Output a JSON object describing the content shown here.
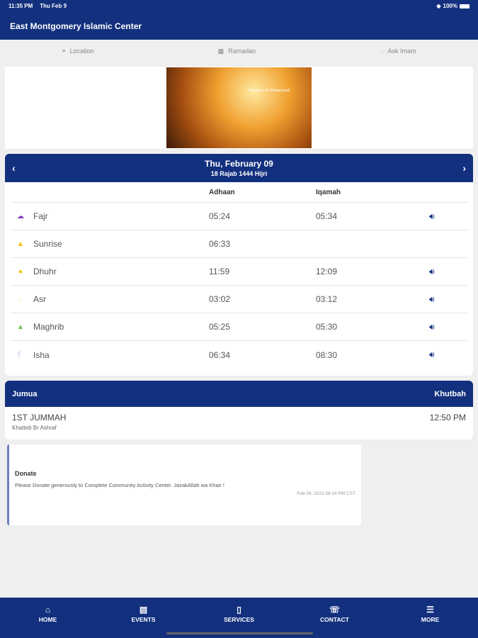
{
  "status": {
    "time": "11:35 PM",
    "date": "Thu Feb 9",
    "battery": "100%"
  },
  "app_title": "East Montgomery Islamic Center",
  "quick_links": [
    {
      "label": "Location",
      "icon": "pin-icon"
    },
    {
      "label": "Ramadan",
      "icon": "calendar-icon"
    },
    {
      "label": "Ask Imam",
      "icon": "chat-icon"
    }
  ],
  "banner": {
    "quote_title": "Translator (O Muhammad)"
  },
  "prayer": {
    "date": "Thu, February 09",
    "hijri": "18 Rajab 1444 Hijri",
    "col_adhaan": "Adhaan",
    "col_iqamah": "Iqamah",
    "rows": [
      {
        "name": "Fajr",
        "adhaan": "05:24",
        "iqamah": "05:34",
        "color": "#7b3fc4",
        "sound": true
      },
      {
        "name": "Sunrise",
        "adhaan": "06:33",
        "iqamah": "",
        "color": "#f5c000",
        "sound": false
      },
      {
        "name": "Dhuhr",
        "adhaan": "11:59",
        "iqamah": "12:09",
        "color": "#f5c000",
        "sound": true
      },
      {
        "name": "Asr",
        "adhaan": "03:02",
        "iqamah": "03:12",
        "color": "#f7eaa0",
        "sound": true
      },
      {
        "name": "Maghrib",
        "adhaan": "05:25",
        "iqamah": "05:30",
        "color": "#6cc24a",
        "sound": true
      },
      {
        "name": "Isha",
        "adhaan": "06:34",
        "iqamah": "08:30",
        "color": "#8fa6e0",
        "sound": true
      }
    ]
  },
  "jumua": {
    "title": "Jumua",
    "khutbah": "Khutbah",
    "name": "1ST JUMMAH",
    "speaker": "Khatteb Br Ashraf",
    "time": "12:50 PM"
  },
  "announcement": {
    "title": "Donate",
    "body": "Please Donate generously to Complete Community Activity Center. JazakAllah wa Khair !",
    "timestamp": "Feb 09, 2023 08:14 PM CST"
  },
  "nav": [
    {
      "label": "HOME",
      "icon": "⌂"
    },
    {
      "label": "EVENTS",
      "icon": "▤"
    },
    {
      "label": "SERVICES",
      "icon": "▯"
    },
    {
      "label": "CONTACT",
      "icon": "☏"
    },
    {
      "label": "MORE",
      "icon": "☰"
    }
  ]
}
